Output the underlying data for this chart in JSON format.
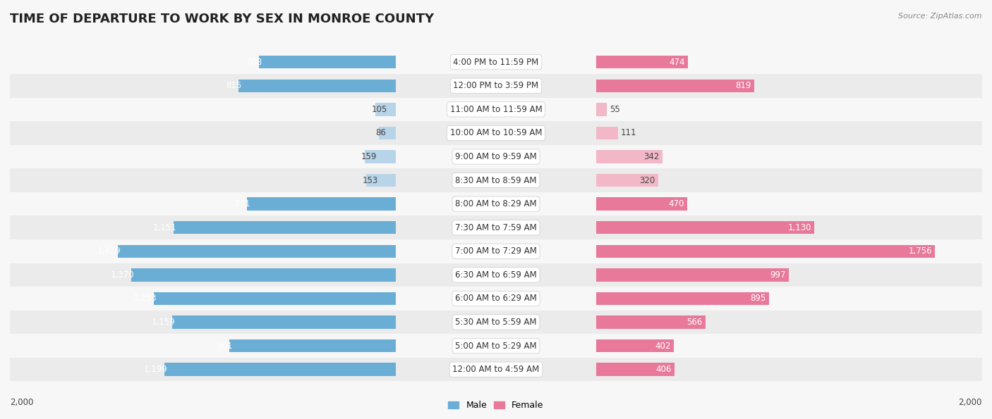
{
  "title": "TIME OF DEPARTURE TO WORK BY SEX IN MONROE COUNTY",
  "source": "Source: ZipAtlas.com",
  "categories": [
    "12:00 AM to 4:59 AM",
    "5:00 AM to 5:29 AM",
    "5:30 AM to 5:59 AM",
    "6:00 AM to 6:29 AM",
    "6:30 AM to 6:59 AM",
    "7:00 AM to 7:29 AM",
    "7:30 AM to 7:59 AM",
    "8:00 AM to 8:29 AM",
    "8:30 AM to 8:59 AM",
    "9:00 AM to 9:59 AM",
    "10:00 AM to 10:59 AM",
    "11:00 AM to 11:59 AM",
    "12:00 PM to 3:59 PM",
    "4:00 PM to 11:59 PM"
  ],
  "male_values": [
    1199,
    861,
    1159,
    1253,
    1370,
    1439,
    1151,
    771,
    153,
    159,
    86,
    105,
    815,
    708
  ],
  "female_values": [
    406,
    402,
    566,
    895,
    997,
    1756,
    1130,
    470,
    320,
    342,
    111,
    55,
    819,
    474
  ],
  "male_color_high": "#6aaed6",
  "male_color_low": "#b8d4e8",
  "female_color_high": "#e8799a",
  "female_color_low": "#f2b8c8",
  "bg_row_alt": "#ebebeb",
  "bg_row_main": "#f7f7f7",
  "fig_bg": "#f7f7f7",
  "max_value": 2000,
  "bar_height": 0.55,
  "title_fontsize": 13,
  "label_fontsize": 8.5,
  "category_fontsize": 8.5,
  "legend_fontsize": 9,
  "source_fontsize": 8,
  "male_high_threshold": 700,
  "female_high_threshold": 400
}
